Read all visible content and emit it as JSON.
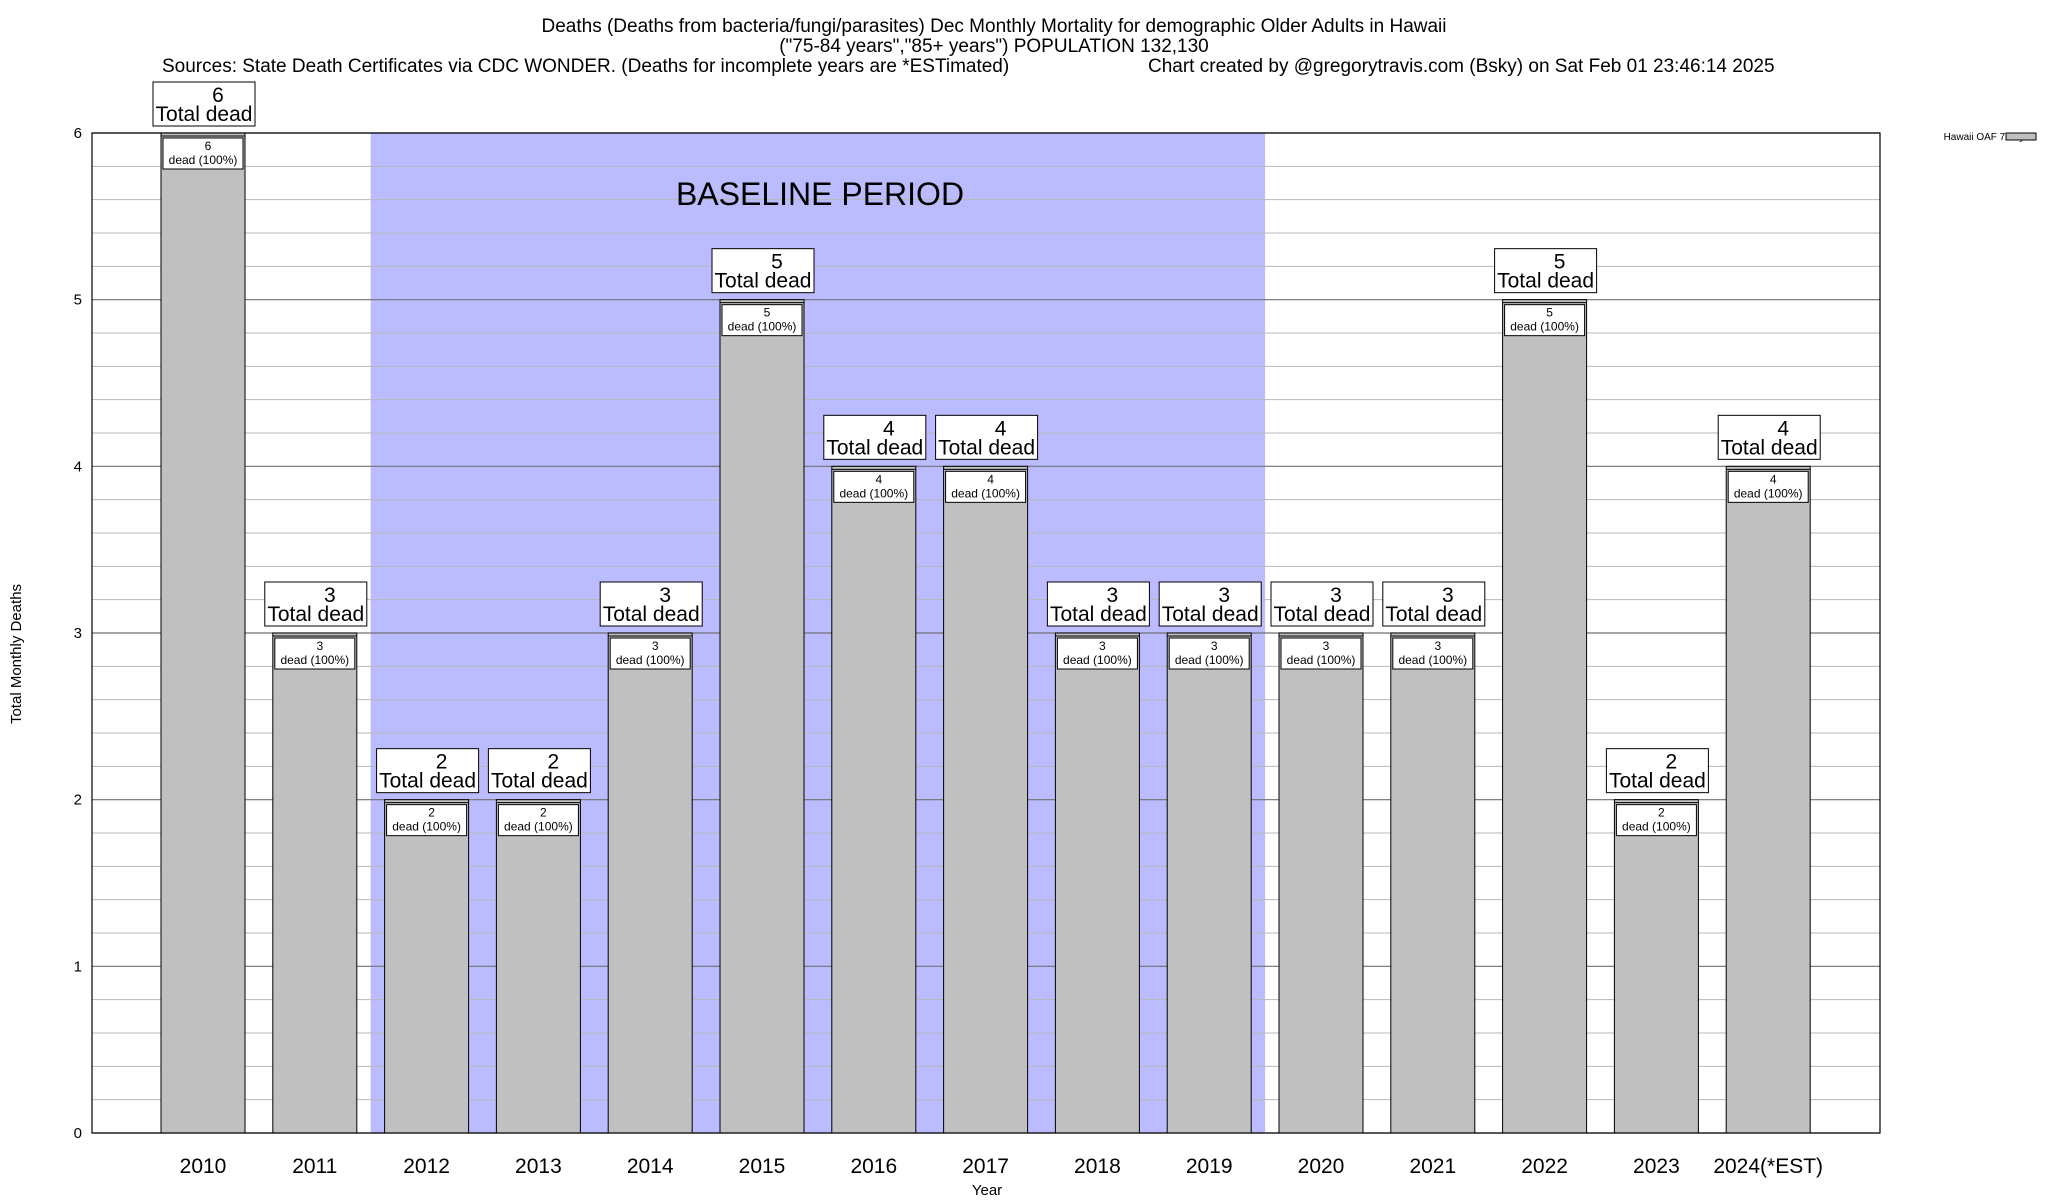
{
  "header": {
    "title_line1": "Deaths (Deaths from bacteria/fungi/parasites) Dec Monthly Mortality for demographic Older Adults in Hawaii",
    "title_line2": "(\"75-84 years\",\"85+ years\") POPULATION 132,130",
    "sources": "Sources: State Death Certificates via CDC WONDER. (Deaths for incomplete years are *ESTimated)",
    "credit": "Chart created by @gregorytravis.com (Bsky) on Sat Feb 01 23:46:14 2025"
  },
  "chart_data": {
    "type": "bar",
    "xlabel": "Year",
    "ylabel": "Total Monthly Deaths",
    "ylim": [
      0,
      6
    ],
    "y_ticks": [
      "0",
      "1",
      "2",
      "3",
      "4",
      "5",
      "6"
    ],
    "minor_grid_step": 0.2,
    "grid": true,
    "categories": [
      "2010",
      "2011",
      "2012",
      "2013",
      "2014",
      "2015",
      "2016",
      "2017",
      "2018",
      "2019",
      "2020",
      "2021",
      "2022",
      "2023",
      "2024(*EST)"
    ],
    "series": [
      {
        "name": "Hawaii OAF 75+ yo",
        "color": "#c0c0c0",
        "values": [
          6,
          3,
          2,
          2,
          3,
          5,
          4,
          4,
          3,
          3,
          3,
          3,
          5,
          2,
          4
        ]
      }
    ],
    "total_labels": [
      {
        "num": "6",
        "text": "Total dead"
      },
      {
        "num": "3",
        "text": "Total dead"
      },
      {
        "num": "2",
        "text": "Total dead"
      },
      {
        "num": "2",
        "text": "Total dead"
      },
      {
        "num": "3",
        "text": "Total dead"
      },
      {
        "num": "5",
        "text": "Total dead"
      },
      {
        "num": "4",
        "text": "Total dead"
      },
      {
        "num": "4",
        "text": "Total dead"
      },
      {
        "num": "3",
        "text": "Total dead"
      },
      {
        "num": "3",
        "text": "Total dead"
      },
      {
        "num": "3",
        "text": "Total dead"
      },
      {
        "num": "3",
        "text": "Total dead"
      },
      {
        "num": "5",
        "text": "Total dead"
      },
      {
        "num": "2",
        "text": "Total dead"
      },
      {
        "num": "4",
        "text": "Total dead"
      }
    ],
    "inner_labels": [
      {
        "num": "6",
        "text": "dead (100%)"
      },
      {
        "num": "3",
        "text": "dead (100%)"
      },
      {
        "num": "2",
        "text": "dead (100%)"
      },
      {
        "num": "2",
        "text": "dead (100%)"
      },
      {
        "num": "3",
        "text": "dead (100%)"
      },
      {
        "num": "5",
        "text": "dead (100%)"
      },
      {
        "num": "4",
        "text": "dead (100%)"
      },
      {
        "num": "4",
        "text": "dead (100%)"
      },
      {
        "num": "3",
        "text": "dead (100%)"
      },
      {
        "num": "3",
        "text": "dead (100%)"
      },
      {
        "num": "3",
        "text": "dead (100%)"
      },
      {
        "num": "3",
        "text": "dead (100%)"
      },
      {
        "num": "5",
        "text": "dead (100%)"
      },
      {
        "num": "2",
        "text": "dead (100%)"
      },
      {
        "num": "4",
        "text": "dead (100%)"
      }
    ],
    "baseline": {
      "label": "BASELINE PERIOD",
      "from": "2012",
      "to": "2019",
      "color": "#bbbbff"
    },
    "legend": {
      "placement": "top-right",
      "entries": [
        "Hawaii OAF 75+ yo"
      ]
    }
  }
}
